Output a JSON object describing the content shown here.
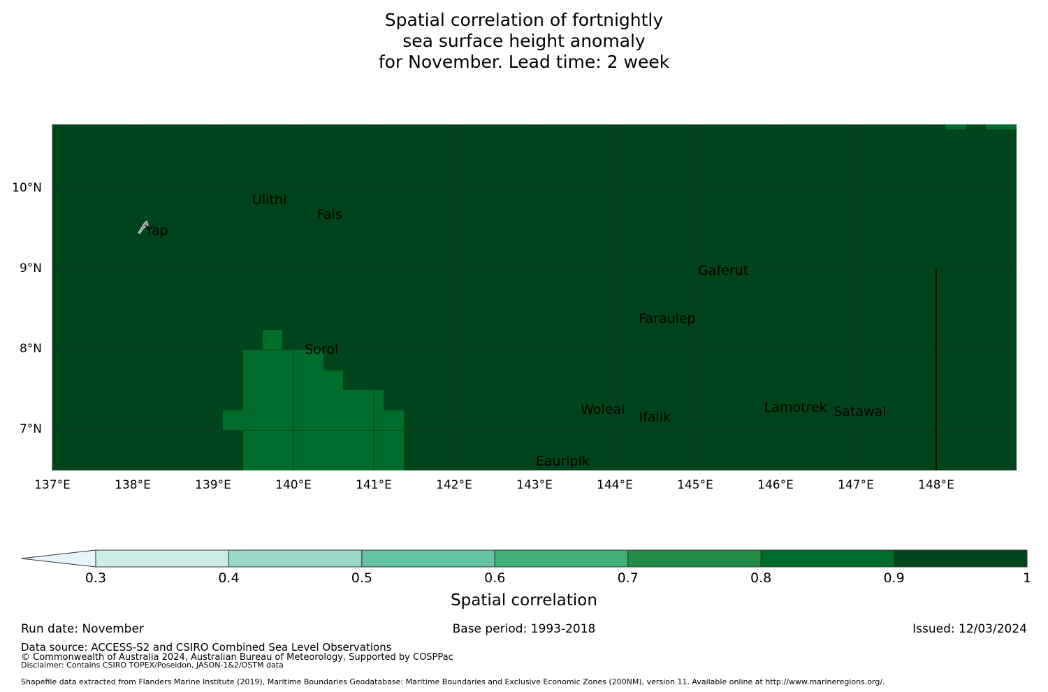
{
  "title": {
    "line1": "Spatial correlation of fortnightly",
    "line2": "sea surface height anomaly",
    "line3": "for November. Lead time: 2 week"
  },
  "map": {
    "lat_ticks": [
      "10°N",
      "9°N",
      "8°N",
      "7°N"
    ],
    "lon_ticks": [
      "137°E",
      "138°E",
      "139°E",
      "140°E",
      "141°E",
      "142°E",
      "143°E",
      "144°E",
      "145°E",
      "146°E",
      "147°E",
      "148°E"
    ],
    "lon_range": [
      137,
      149
    ],
    "lat_range": [
      6.5,
      10.8
    ],
    "background_color": "#00441b",
    "patch_color": "#006d2c",
    "grid_color": "#1a3a22",
    "places": [
      {
        "name": "Ulithi",
        "lon": 139.7,
        "lat": 9.85
      },
      {
        "name": "Fais",
        "lon": 140.45,
        "lat": 9.67
      },
      {
        "name": "Yap",
        "lon": 138.3,
        "lat": 9.47
      },
      {
        "name": "Gaferut",
        "lon": 145.35,
        "lat": 8.98
      },
      {
        "name": "Faraulep",
        "lon": 144.65,
        "lat": 8.38
      },
      {
        "name": "Sorol",
        "lon": 140.35,
        "lat": 7.99
      },
      {
        "name": "Woleai",
        "lon": 143.85,
        "lat": 7.25
      },
      {
        "name": "Ifalik",
        "lon": 144.5,
        "lat": 7.15
      },
      {
        "name": "Lamotrek",
        "lon": 146.25,
        "lat": 7.27
      },
      {
        "name": "Satawal",
        "lon": 147.05,
        "lat": 7.22
      },
      {
        "name": "Eauripik",
        "lon": 143.35,
        "lat": 6.6
      }
    ]
  },
  "colorbar": {
    "label": "Spatial correlation",
    "ticks": [
      "0.3",
      "0.4",
      "0.5",
      "0.6",
      "0.7",
      "0.8",
      "0.9",
      "1"
    ],
    "colors": [
      "#ccece6",
      "#99d8c9",
      "#66c2a4",
      "#41ae76",
      "#238b45",
      "#006d2c",
      "#00441b"
    ],
    "extend_color": "#e5f5f9"
  },
  "footer": {
    "run_date": "Run date: November",
    "base_period": "Base period: 1993-2018",
    "issued": "Issued: 12/03/2024",
    "data_source": "Data source: ACCESS-S2 and CSIRO Combined Sea Level Observations",
    "copyright": "© Commonwealth of Australia 2024, Australian Bureau of Meteorology, Supported by COSPPac",
    "disclaimer": "Disclaimer: Contains CSIRO TOPEX/Poseidon, JASON-1&2/OSTM data",
    "shapefile": "Shapefile data extracted from Flanders Marine Institute (2019), Maritime Boundaries Geodatabase: Maritime Boundaries and Exclusive Economic Zones (200NM), version 11. Available online at http://www.marineregions.org/."
  }
}
